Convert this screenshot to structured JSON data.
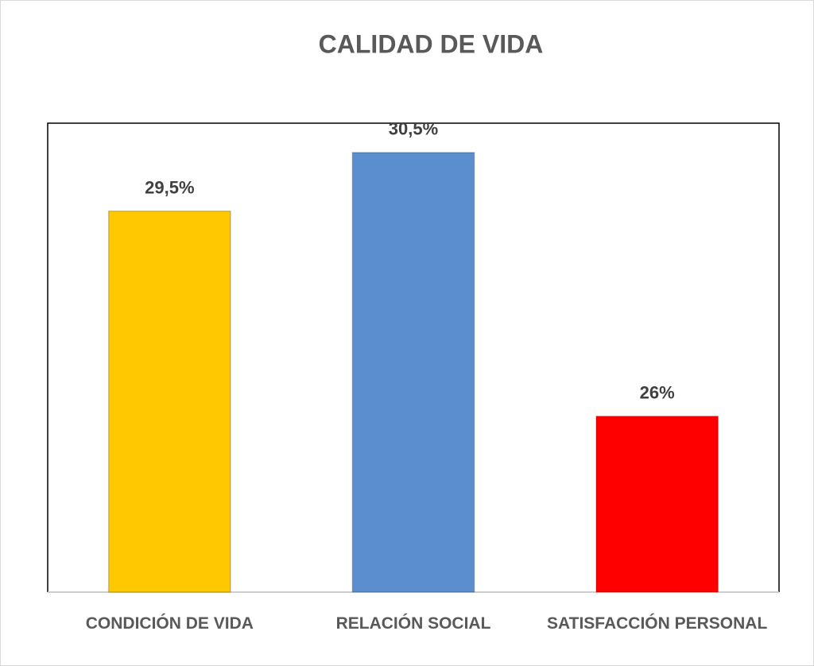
{
  "chart_data": {
    "type": "bar",
    "title": "CALIDAD DE VIDA",
    "categories": [
      "CONDICIÓN DE VIDA",
      "RELACIÓN SOCIAL",
      "SATISFACCIÓN PERSONAL"
    ],
    "values": [
      29.5,
      30.5,
      26
    ],
    "value_labels": [
      "29,5%",
      "30,5%",
      "26%"
    ],
    "colors": [
      "#ffc800",
      "#5b8ecf",
      "#ff0000"
    ],
    "ylim": [
      23,
      31
    ]
  }
}
